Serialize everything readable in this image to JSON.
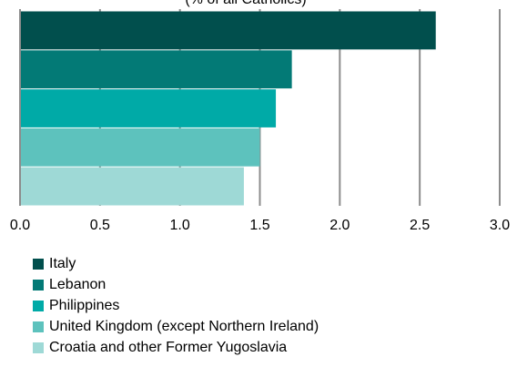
{
  "chart_data": {
    "type": "bar",
    "orientation": "horizontal",
    "subtitle": "(% of all Catholics)",
    "series": [
      {
        "name": "Italy",
        "color": "#014f4d",
        "values": [
          2.6
        ]
      },
      {
        "name": "Lebanon",
        "color": "#037a76",
        "values": [
          1.7
        ]
      },
      {
        "name": "Philippines",
        "color": "#00aaa7",
        "values": [
          1.6
        ]
      },
      {
        "name": "United Kingdom (except Northern Ireland)",
        "color": "#5dc2bd",
        "values": [
          1.5
        ]
      },
      {
        "name": "Croatia and other Former Yugoslavia",
        "color": "#9ed9d6",
        "values": [
          1.4
        ]
      }
    ],
    "xlim": [
      0,
      3
    ],
    "xticks": [
      {
        "value": 0,
        "label": "0.0"
      },
      {
        "value": 0.5,
        "label": "0.5"
      },
      {
        "value": 1,
        "label": "1.0"
      },
      {
        "value": 1.5,
        "label": "1.5"
      },
      {
        "value": 2,
        "label": "2.0"
      },
      {
        "value": 2.5,
        "label": "2.5"
      },
      {
        "value": 3,
        "label": "3.0"
      }
    ],
    "grid": true,
    "legend": "bottom"
  }
}
